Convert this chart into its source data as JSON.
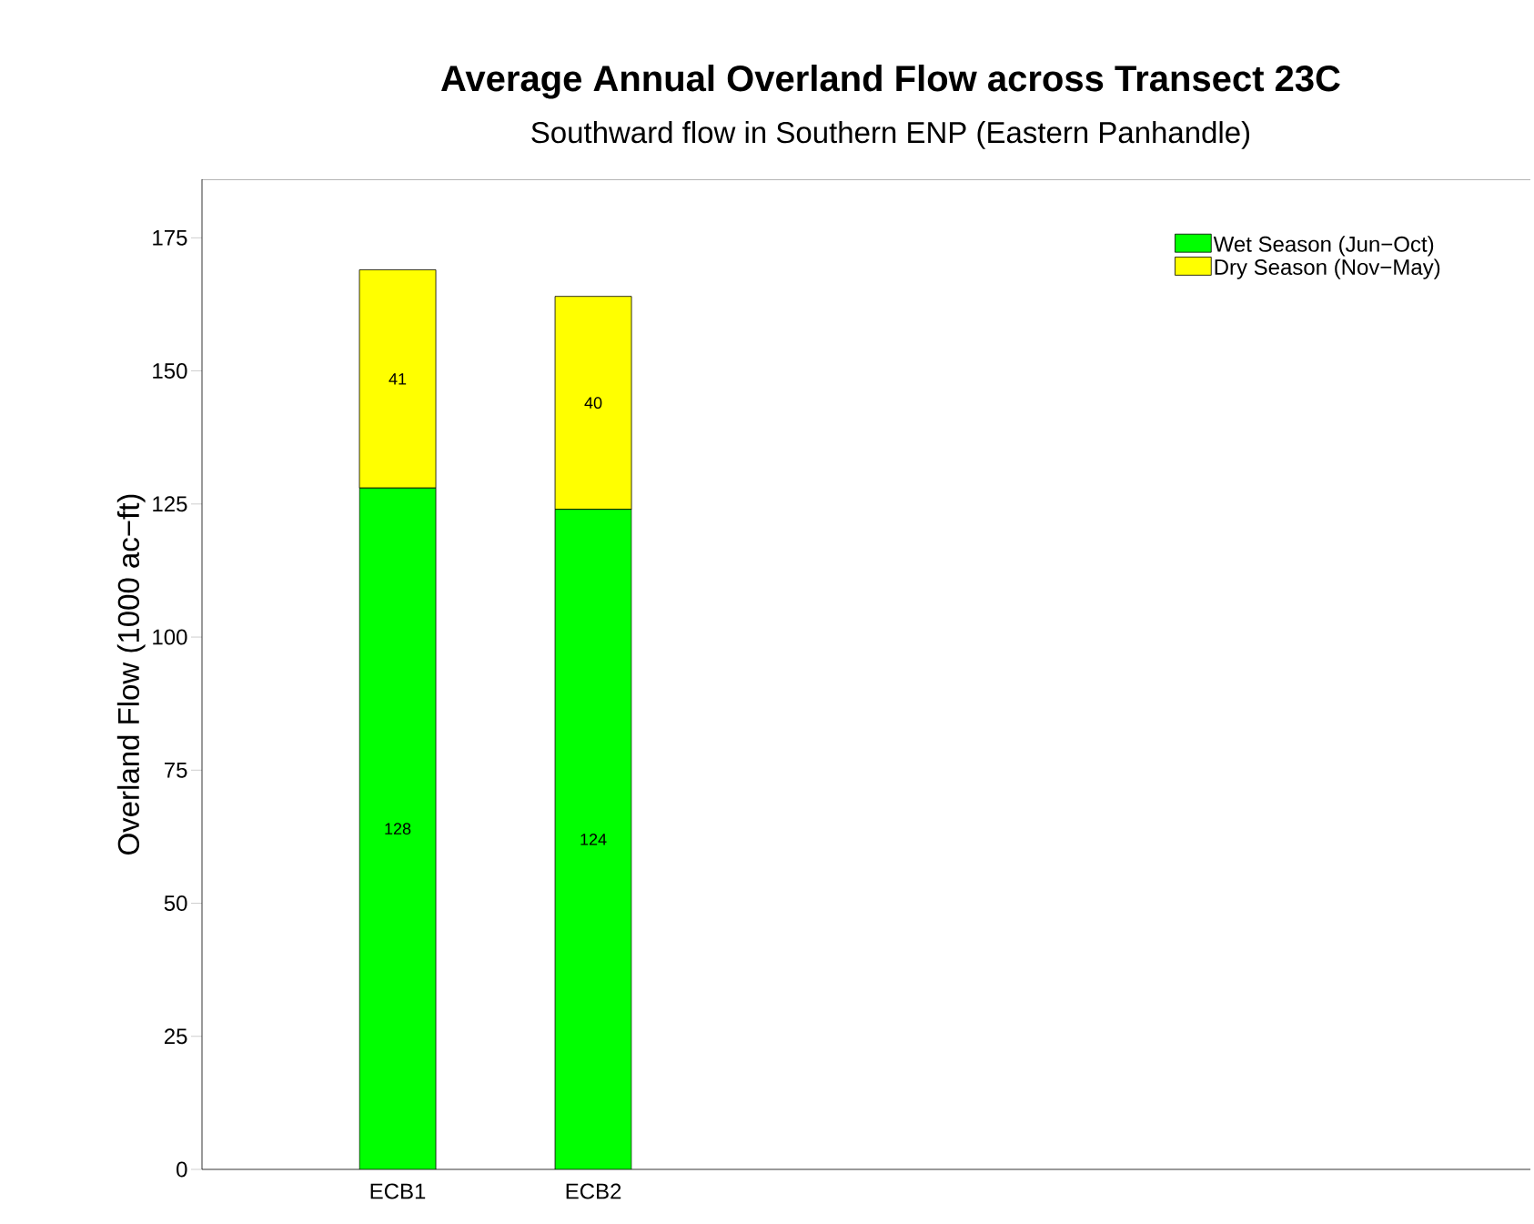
{
  "chart_data": {
    "type": "bar",
    "stacked": true,
    "title": "Average Annual Overland Flow across Transect 23C",
    "subtitle": "Southward flow in Southern ENP (Eastern Panhandle)",
    "ylabel": "Overland Flow (1000 ac−ft)",
    "categories": [
      "ECB1",
      "ECB2"
    ],
    "series": [
      {
        "name": "Wet Season (Jun−Oct)",
        "color": "#00ff00",
        "values": [
          128,
          124
        ]
      },
      {
        "name": "Dry Season (Nov−May)",
        "color": "#ffff00",
        "values": [
          41,
          40
        ]
      }
    ],
    "ylim": [
      0,
      186
    ],
    "yticks": [
      0,
      25,
      50,
      75,
      100,
      125,
      150,
      175
    ],
    "data_labels": true,
    "legend": "top right",
    "grid": false
  }
}
